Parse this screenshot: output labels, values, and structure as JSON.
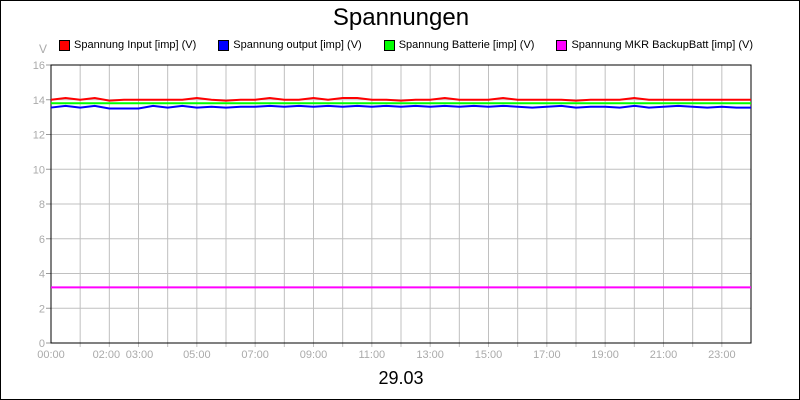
{
  "chart_data": {
    "type": "line",
    "title": "Spannungen",
    "xlabel": "29.03",
    "ylabel": "V",
    "ylim": [
      0,
      16
    ],
    "yticks": [
      0,
      2,
      4,
      6,
      8,
      10,
      12,
      14,
      16
    ],
    "xlim_hours": [
      0,
      24
    ],
    "xtick_labels": [
      {
        "h": 0,
        "label": "00:00"
      },
      {
        "h": 2,
        "label": "02:00"
      },
      {
        "h": 3,
        "label": "03:00"
      },
      {
        "h": 5,
        "label": "05:00"
      },
      {
        "h": 7,
        "label": "07:00"
      },
      {
        "h": 9,
        "label": "09:00"
      },
      {
        "h": 11,
        "label": "11:00"
      },
      {
        "h": 13,
        "label": "13:00"
      },
      {
        "h": 15,
        "label": "15:00"
      },
      {
        "h": 17,
        "label": "17:00"
      },
      {
        "h": 19,
        "label": "19:00"
      },
      {
        "h": 21,
        "label": "21:00"
      },
      {
        "h": 23,
        "label": "23:00"
      }
    ],
    "grid": true,
    "legend_position": "top",
    "x": [
      "00:00",
      "00:30",
      "01:00",
      "01:30",
      "02:00",
      "02:30",
      "03:00",
      "03:30",
      "04:00",
      "04:30",
      "05:00",
      "05:30",
      "06:00",
      "06:30",
      "07:00",
      "07:30",
      "08:00",
      "08:30",
      "09:00",
      "09:30",
      "10:00",
      "10:30",
      "11:00",
      "11:30",
      "12:00",
      "12:30",
      "13:00",
      "13:30",
      "14:00",
      "14:30",
      "15:00",
      "15:30",
      "16:00",
      "16:30",
      "17:00",
      "17:30",
      "18:00",
      "18:30",
      "19:00",
      "19:30",
      "20:00",
      "20:30",
      "21:00",
      "21:30",
      "22:00",
      "22:30",
      "23:00",
      "23:30",
      "24:00"
    ],
    "series": [
      {
        "name": "Spannung Input [imp] (V)",
        "color": "#ff0000",
        "values": [
          14.0,
          14.1,
          14.0,
          14.1,
          13.95,
          14.0,
          14.0,
          14.0,
          14.0,
          14.0,
          14.1,
          14.0,
          13.95,
          14.0,
          14.0,
          14.1,
          14.0,
          14.0,
          14.1,
          14.0,
          14.1,
          14.1,
          14.0,
          14.0,
          13.95,
          14.0,
          14.0,
          14.1,
          14.0,
          14.0,
          14.0,
          14.1,
          14.0,
          14.0,
          14.0,
          14.0,
          13.95,
          14.0,
          14.0,
          14.0,
          14.1,
          14.0,
          14.0,
          14.0,
          14.0,
          14.0,
          14.0,
          14.0,
          14.0
        ]
      },
      {
        "name": "Spannung output [imp] (V)",
        "color": "#0000ff",
        "values": [
          13.55,
          13.65,
          13.55,
          13.65,
          13.5,
          13.5,
          13.5,
          13.65,
          13.55,
          13.65,
          13.55,
          13.6,
          13.55,
          13.6,
          13.6,
          13.65,
          13.6,
          13.65,
          13.6,
          13.65,
          13.6,
          13.65,
          13.6,
          13.65,
          13.6,
          13.65,
          13.6,
          13.65,
          13.6,
          13.65,
          13.6,
          13.65,
          13.6,
          13.55,
          13.6,
          13.65,
          13.55,
          13.6,
          13.6,
          13.55,
          13.65,
          13.55,
          13.6,
          13.65,
          13.6,
          13.55,
          13.6,
          13.55,
          13.55
        ]
      },
      {
        "name": "Spannung Batterie [imp] (V)",
        "color": "#00ff00",
        "values": [
          13.8,
          13.8,
          13.8,
          13.8,
          13.8,
          13.8,
          13.8,
          13.8,
          13.8,
          13.8,
          13.8,
          13.8,
          13.8,
          13.8,
          13.8,
          13.8,
          13.8,
          13.8,
          13.8,
          13.8,
          13.8,
          13.8,
          13.8,
          13.8,
          13.8,
          13.8,
          13.8,
          13.8,
          13.8,
          13.8,
          13.8,
          13.8,
          13.8,
          13.8,
          13.8,
          13.8,
          13.8,
          13.8,
          13.8,
          13.8,
          13.8,
          13.8,
          13.8,
          13.8,
          13.8,
          13.8,
          13.8,
          13.8,
          13.8
        ]
      },
      {
        "name": "Spannung MKR BackupBatt [imp] (V)",
        "color": "#ff00ff",
        "values": [
          3.2,
          3.2,
          3.2,
          3.2,
          3.2,
          3.2,
          3.2,
          3.2,
          3.2,
          3.2,
          3.2,
          3.2,
          3.2,
          3.2,
          3.2,
          3.2,
          3.2,
          3.2,
          3.2,
          3.2,
          3.2,
          3.2,
          3.2,
          3.2,
          3.2,
          3.2,
          3.2,
          3.2,
          3.2,
          3.2,
          3.2,
          3.2,
          3.2,
          3.2,
          3.2,
          3.2,
          3.2,
          3.2,
          3.2,
          3.2,
          3.2,
          3.2,
          3.2,
          3.2,
          3.2,
          3.2,
          3.2,
          3.2,
          3.2
        ]
      }
    ]
  }
}
